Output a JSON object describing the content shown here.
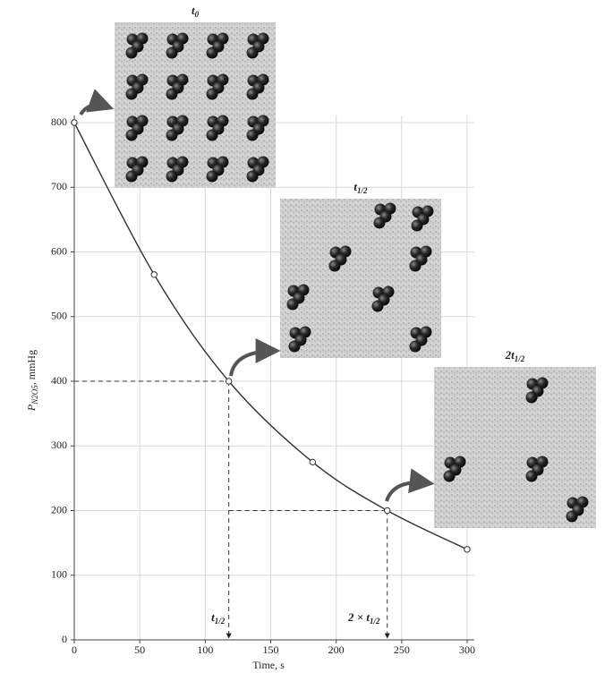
{
  "chart_data": {
    "type": "line",
    "x_label": "Time, s",
    "y_label": {
      "symbol": "P",
      "subscript": "N2O5",
      "unit": ", mmHg"
    },
    "x": [
      0,
      61,
      118,
      182,
      239,
      300
    ],
    "values": [
      800,
      565,
      400,
      275,
      200,
      140
    ],
    "color": "#333333",
    "xlim": [
      0,
      300
    ],
    "xticks": [
      0,
      50,
      100,
      150,
      200,
      250,
      300
    ],
    "ylim": [
      0,
      800
    ],
    "yticks": [
      0,
      100,
      200,
      300,
      400,
      500,
      600,
      700,
      800
    ],
    "grid": true,
    "annotations": [
      {
        "text": "t",
        "sub": "1/2"
      },
      {
        "text": "2 × t",
        "sub": "1/2"
      }
    ],
    "panels": [
      {
        "text": "t",
        "sub": "0"
      },
      {
        "text": "t",
        "sub": "1/2"
      },
      {
        "text": "2t",
        "sub": "1/2"
      }
    ]
  }
}
